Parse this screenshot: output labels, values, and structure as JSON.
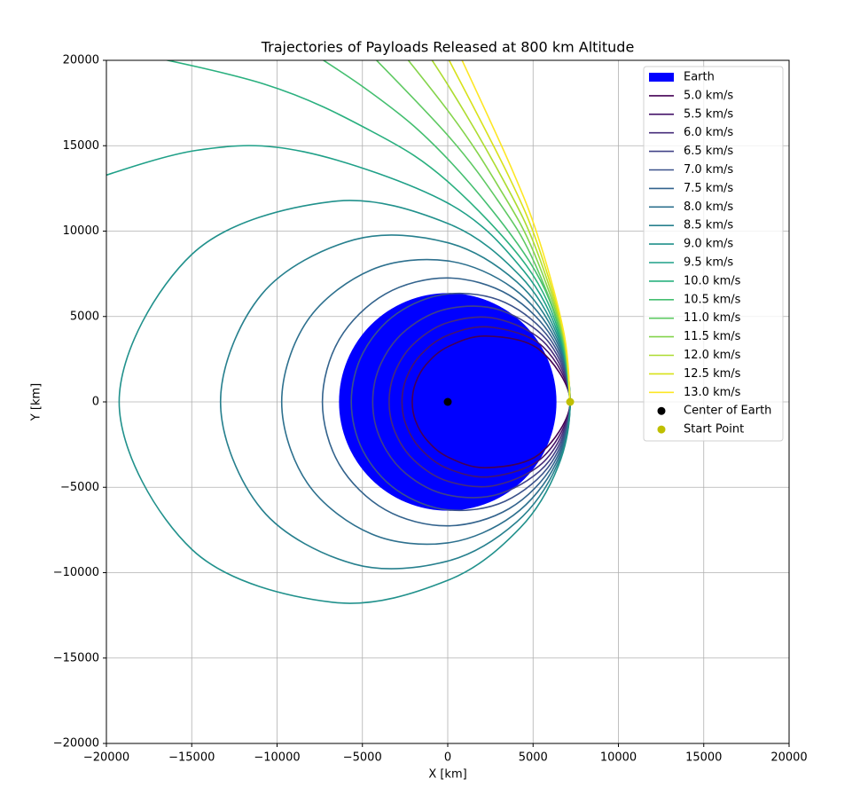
{
  "chart_data": {
    "type": "line",
    "title": "Trajectories of Payloads Released at 800 km Altitude",
    "x_label": "X [km]",
    "y_label": "Y [km]",
    "xlim": [
      -20000,
      20000
    ],
    "ylim": [
      -20000,
      20000
    ],
    "xticks": [
      {
        "value": -20000,
        "label": "−20000"
      },
      {
        "value": -15000,
        "label": "−15000"
      },
      {
        "value": -10000,
        "label": "−10000"
      },
      {
        "value": -5000,
        "label": "−5000"
      },
      0,
      5000,
      10000,
      15000,
      20000
    ],
    "yticks": [
      {
        "value": -20000,
        "label": "−20000"
      },
      {
        "value": -15000,
        "label": "−15000"
      },
      {
        "value": -10000,
        "label": "−10000"
      },
      {
        "value": -5000,
        "label": "−5000"
      },
      0,
      5000,
      10000,
      15000,
      20000
    ],
    "grid": true,
    "legend": "upper right",
    "earth": {
      "name": "Earth",
      "color": "#0000ff",
      "radius": 6371
    },
    "series": [
      {
        "name": "5.0 km/s",
        "color": "#440154",
        "x": [
          7171,
          5336,
          2225,
          0,
          -1265,
          -1891,
          -2080,
          -1891,
          -1265,
          0,
          2225,
          5336,
          7171
        ],
        "y": [
          0,
          3081,
          3854,
          3225,
          2190,
          1092,
          0,
          -1092,
          -2190,
          -3225,
          -3854,
          -3081,
          0
        ]
      },
      {
        "name": "5.5 km/s",
        "color": "#46156a",
        "x": [
          7171,
          5583,
          2527,
          0,
          -1589,
          -2423,
          -2681,
          -2423,
          -1589,
          0,
          2527,
          5583,
          7171
        ],
        "y": [
          0,
          3224,
          4377,
          3903,
          2752,
          1399,
          0,
          -1399,
          -2752,
          -3903,
          -4377,
          -3224,
          0
        ]
      },
      {
        "name": "6.0 km/s",
        "color": "#472c7a",
        "x": [
          7171,
          5788,
          2819,
          0,
          -1974,
          -3081,
          -3434,
          -3081,
          -1974,
          0,
          2819,
          5788,
          7171
        ],
        "y": [
          0,
          3342,
          4882,
          4644,
          3419,
          1779,
          0,
          -1779,
          -3419,
          -4644,
          -4882,
          -3342,
          0
        ]
      },
      {
        "name": "6.5 km/s",
        "color": "#414287",
        "x": [
          7171,
          5959,
          3097,
          0,
          -2434,
          -3908,
          -4396,
          -3908,
          -2434,
          0,
          3097,
          5959,
          7171
        ],
        "y": [
          0,
          3441,
          5364,
          5451,
          4215,
          2257,
          0,
          -2257,
          -4215,
          -5451,
          -5364,
          -3441,
          0
        ]
      },
      {
        "name": "7.0 km/s",
        "color": "#3b528b",
        "x": [
          7171,
          6100,
          3360,
          0,
          -2984,
          -4965,
          -5651,
          -4965,
          -2984,
          0,
          3360,
          6100,
          7171
        ],
        "y": [
          0,
          3522,
          5819,
          6321,
          5168,
          2867,
          0,
          -2867,
          -5168,
          -6321,
          -5819,
          -3522,
          0
        ]
      },
      {
        "name": "7.5 km/s",
        "color": "#33638d",
        "x": [
          7171,
          6220,
          3607,
          0,
          -3650,
          -6350,
          -7344,
          -6350,
          -3650,
          0,
          3607,
          6220,
          7171
        ],
        "y": [
          0,
          3591,
          6247,
          7257,
          6323,
          3666,
          0,
          -3666,
          -6323,
          -7257,
          -6247,
          -3591,
          0
        ]
      },
      {
        "name": "8.0 km/s",
        "color": "#2d708e",
        "x": [
          7171,
          6321,
          3838,
          0,
          -4466,
          -8229,
          -9729,
          -8229,
          -4466,
          0,
          3838,
          6321,
          7171
        ],
        "y": [
          0,
          3650,
          6647,
          8256,
          7735,
          4751,
          0,
          -4751,
          -7735,
          -8256,
          -6647,
          -3650,
          0
        ]
      },
      {
        "name": "8.5 km/s",
        "color": "#27808e",
        "x": [
          7171,
          6408,
          4053,
          0,
          -5482,
          -10902,
          -13312,
          -10902,
          -5482,
          0,
          4053,
          6408,
          7171
        ],
        "y": [
          0,
          3700,
          7020,
          9321,
          9496,
          6295,
          0,
          -6295,
          -9496,
          -9321,
          -7020,
          -3700,
          0
        ]
      },
      {
        "name": "9.0 km/s",
        "color": "#21918c",
        "x": [
          7171,
          6483,
          4253,
          0,
          -6773,
          -14981,
          -19252,
          -14981,
          -6773,
          0,
          4253,
          6483,
          7171
        ],
        "y": [
          0,
          3743,
          7366,
          10450,
          11732,
          8649,
          0,
          -8649,
          -11732,
          -10450,
          -7366,
          -3743,
          0
        ]
      },
      {
        "name": "9.5 km/s",
        "color": "#1fa088",
        "x": [
          7171,
          6547,
          4438,
          0,
          -8459,
          -14728,
          -21920
        ],
        "y": [
          0,
          3780,
          7687,
          11643,
          14651,
          14728,
          12656
        ]
      },
      {
        "name": "10.0 km/s",
        "color": "#2ab07f",
        "x": [
          7171,
          6603,
          4609,
          0,
          -4209,
          -10742,
          -20971
        ],
        "y": [
          0,
          3813,
          7984,
          12901,
          15710,
          18606,
          20971
        ]
      },
      {
        "name": "10.5 km/s",
        "color": "#44bf70",
        "x": [
          7171,
          6652,
          4767,
          0,
          -4938,
          -13991
        ],
        "y": [
          0,
          3841,
          8257,
          14223,
          18429,
          24233
        ]
      },
      {
        "name": "11.0 km/s",
        "color": "#5ec962",
        "x": [
          7171,
          6695,
          4914,
          3097,
          0,
          -5810
        ],
        "y": [
          0,
          3866,
          8511,
          11557,
          15610,
          21683
        ]
      },
      {
        "name": "11.5 km/s",
        "color": "#84d44b",
        "x": [
          7171,
          6733,
          5049,
          3254,
          0,
          -6866
        ],
        "y": [
          0,
          3888,
          8745,
          12145,
          17061,
          25625
        ]
      },
      {
        "name": "12.0 km/s",
        "color": "#addc30",
        "x": [
          7171,
          6767,
          5174,
          3406,
          0,
          -4455
        ],
        "y": [
          0,
          3907,
          8962,
          12711,
          18577,
          25272
        ]
      },
      {
        "name": "12.5 km/s",
        "color": "#d8e219",
        "x": [
          7171,
          6797,
          5289,
          3552,
          0
        ],
        "y": [
          0,
          3924,
          9161,
          13257,
          20158
        ]
      },
      {
        "name": "13.0 km/s",
        "color": "#fde725",
        "x": [
          7171,
          6824,
          5396,
          3693,
          0
        ],
        "y": [
          0,
          3940,
          9346,
          13782,
          21802
        ]
      }
    ],
    "points": [
      {
        "name": "Center of Earth",
        "color": "#000000",
        "x": 0,
        "y": 0
      },
      {
        "name": "Start Point",
        "color": "#bfbf00",
        "x": 7171,
        "y": 0
      }
    ]
  }
}
